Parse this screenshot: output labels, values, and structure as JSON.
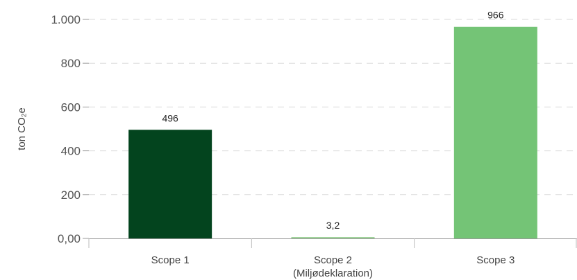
{
  "chart_data": {
    "type": "bar",
    "categories": [
      "Scope 1",
      "Scope 2",
      "Scope 3"
    ],
    "category_sublabels": [
      "",
      "(Miljødeklaration)",
      ""
    ],
    "values": [
      496,
      3.2,
      966
    ],
    "data_labels": [
      "496",
      "3,2",
      "966"
    ],
    "colors": [
      "#03441e",
      "#9fd39a",
      "#74c476"
    ],
    "ylabel": "ton CO₂e",
    "xlabel": "",
    "ylim": [
      0,
      1000
    ],
    "yticks": [
      0,
      200,
      400,
      600,
      800,
      1000
    ],
    "ytick_labels": [
      "0,00",
      "200",
      "400",
      "600",
      "800",
      "1.000"
    ],
    "grid": "horizontal dashed",
    "legend": "none"
  }
}
